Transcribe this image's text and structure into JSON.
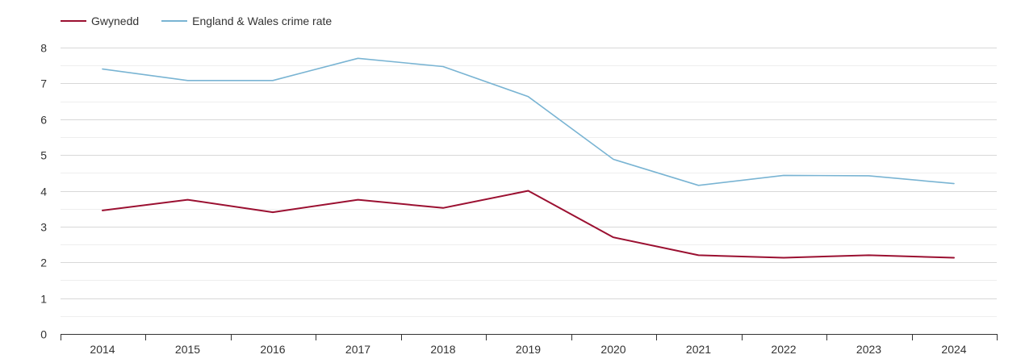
{
  "chart_data": {
    "type": "line",
    "title": "",
    "xlabel": "",
    "ylabel": "",
    "categories": [
      "2014",
      "2015",
      "2016",
      "2017",
      "2018",
      "2019",
      "2020",
      "2021",
      "2022",
      "2023",
      "2024"
    ],
    "series": [
      {
        "name": "Gwynedd",
        "color": "#9b1031",
        "values": [
          3.45,
          3.75,
          3.4,
          3.75,
          3.52,
          4.0,
          2.7,
          2.2,
          2.13,
          2.2,
          2.13
        ]
      },
      {
        "name": "England & Wales crime rate",
        "color": "#79b4d3",
        "values": [
          7.4,
          7.08,
          7.08,
          7.7,
          7.47,
          6.63,
          4.88,
          4.15,
          4.43,
          4.42,
          4.2
        ]
      }
    ],
    "ylim": [
      0,
      8
    ],
    "yticks": [
      "0",
      "1",
      "2",
      "3",
      "4",
      "5",
      "6",
      "7",
      "8"
    ],
    "grid": true,
    "legend_position": "top-left"
  }
}
